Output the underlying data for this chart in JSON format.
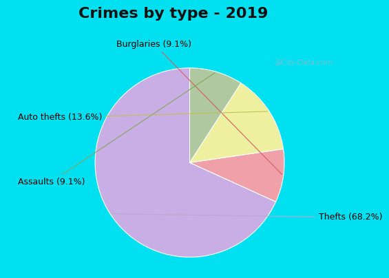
{
  "title": "Crimes by type - 2019",
  "slices": [
    {
      "label": "Thefts (68.2%)",
      "value": 68.2,
      "color": "#c9aee5"
    },
    {
      "label": "Burglaries (9.1%)",
      "value": 9.1,
      "color": "#f0a0a8"
    },
    {
      "label": "Auto thefts (13.6%)",
      "value": 13.6,
      "color": "#eef0a0"
    },
    {
      "label": "Assaults (9.1%)",
      "value": 9.1,
      "color": "#b0c8a0"
    }
  ],
  "title_fontsize": 16,
  "title_fontweight": "bold",
  "background_outer": "#00e0f0",
  "background_inner_left": "#c8e8c0",
  "background_inner_right": "#f0f8f8",
  "label_fontsize": 9,
  "watermark": "@City-Data.com",
  "startangle": 90
}
